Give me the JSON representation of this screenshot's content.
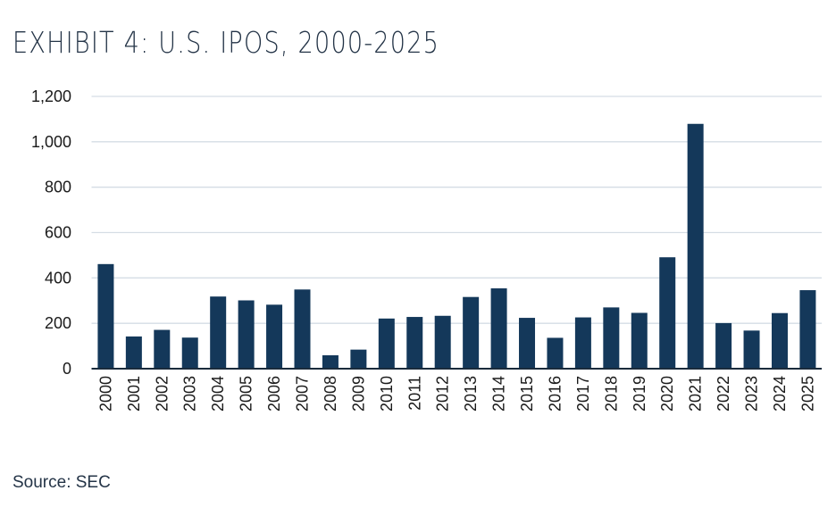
{
  "chart_data": {
    "type": "bar",
    "title": "EXHIBIT 4: U.S. IPOS, 2000-2025",
    "source": "Source: SEC",
    "xlabel": "",
    "ylabel": "",
    "ylim": [
      0,
      1200
    ],
    "yticks": [
      0,
      200,
      400,
      600,
      800,
      1000,
      1200
    ],
    "ytick_labels": [
      "0",
      "200",
      "400",
      "600",
      "800",
      "1,000",
      "1,200"
    ],
    "grid": true,
    "bar_color": "#14385a",
    "categories": [
      "2000",
      "2001",
      "2002",
      "2003",
      "2004",
      "2005",
      "2006",
      "2007",
      "2008",
      "2009",
      "2010",
      "2011",
      "2012",
      "2013",
      "2014",
      "2015",
      "2016",
      "2017",
      "2018",
      "2019",
      "2020",
      "2021",
      "2022",
      "2023",
      "2024",
      "2025"
    ],
    "values": [
      461,
      142,
      171,
      137,
      318,
      301,
      282,
      349,
      59,
      84,
      221,
      228,
      233,
      316,
      354,
      224,
      136,
      226,
      270,
      246,
      491,
      1079,
      201,
      168,
      245,
      346
    ]
  }
}
